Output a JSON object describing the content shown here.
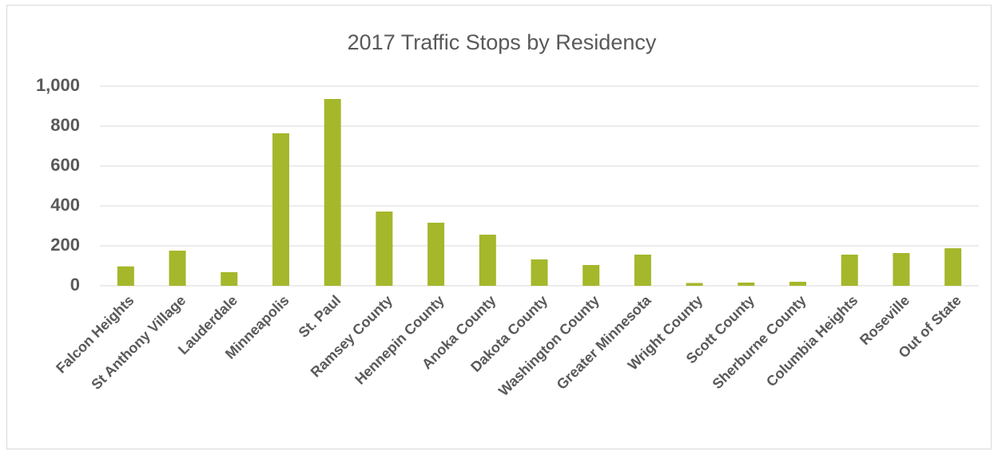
{
  "chart_data": {
    "type": "bar",
    "title": "2017 Traffic Stops by Residency",
    "categories": [
      "Falcon Heights",
      "St Anthony Village",
      "Lauderdale",
      "Minneapolis",
      "St. Paul",
      "Ramsey County",
      "Hennepin County",
      "Anoka County",
      "Dakota County",
      "Washington County",
      "Greater Minnesota",
      "Wright County",
      "Scott County",
      "Sherburne County",
      "Columbia Heights",
      "Roseville",
      "Out of State"
    ],
    "values": [
      97,
      176,
      68,
      764,
      936,
      372,
      316,
      256,
      132,
      104,
      156,
      14,
      16,
      20,
      156,
      164,
      188
    ],
    "color": "#a5b72b",
    "ylim": [
      0,
      1000
    ],
    "yticks": [
      0,
      200,
      400,
      600,
      800,
      {
        "value": 1000,
        "label": "1,000"
      }
    ],
    "grid": true
  }
}
